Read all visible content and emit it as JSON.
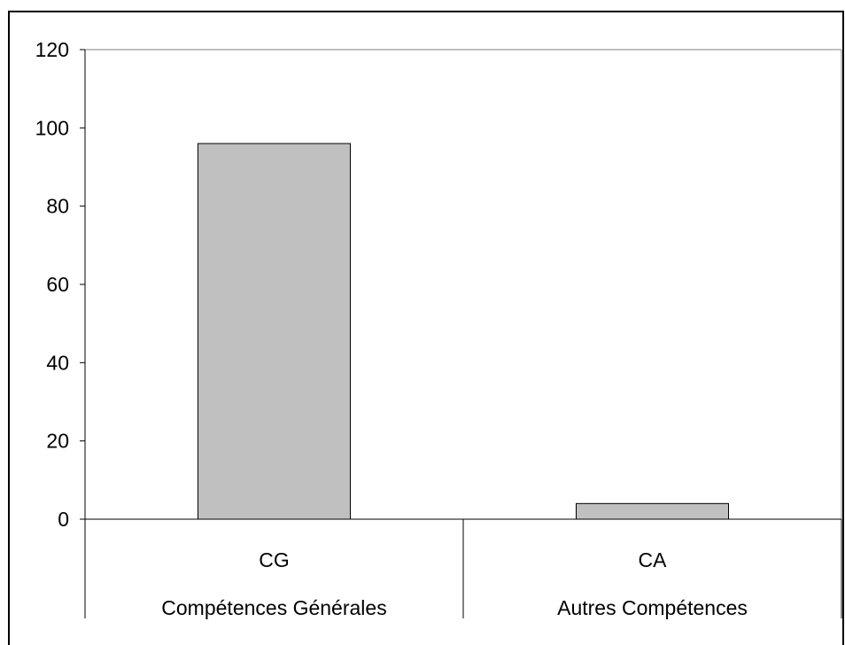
{
  "chart_data": {
    "type": "bar",
    "title": "",
    "xlabel": "",
    "ylabel": "",
    "ylim": [
      0,
      120
    ],
    "yticks": [
      0,
      20,
      40,
      60,
      80,
      100,
      120
    ],
    "grid": false,
    "legend": "none",
    "categories": [
      {
        "code": "CG",
        "name": "Compétences Générales"
      },
      {
        "code": "CA",
        "name": "Autres Compétences"
      }
    ],
    "values": [
      96,
      4
    ],
    "bar_color": "#c0c0c0",
    "bar_edge_color": "#000000"
  }
}
